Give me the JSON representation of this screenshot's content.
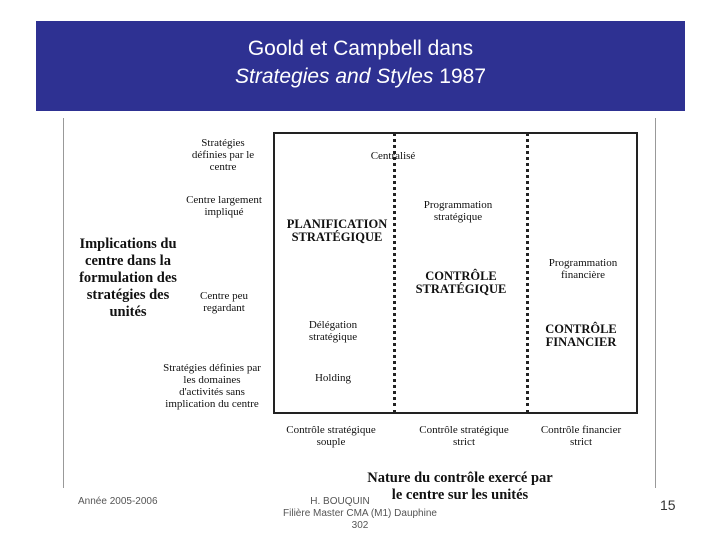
{
  "title": {
    "line1": "Goold et Campbell dans",
    "line2_italic": "Strategies and Styles",
    "line2_year": "1987"
  },
  "diagram": {
    "y_axis_title": [
      "Implications du",
      "centre dans la",
      "formulation des",
      "stratégies des",
      "unités"
    ],
    "y_levels": {
      "top": [
        "Stratégies",
        "définies par le",
        "centre"
      ],
      "upper": [
        "Centre largement",
        "impliqué"
      ],
      "lower": [
        "Centre peu",
        "regardant"
      ],
      "bottom": [
        "Stratégies définies par",
        "les domaines",
        "d'activités sans",
        "implication du centre"
      ]
    },
    "cells": {
      "centralise": "Centralisé",
      "prog_strategique": [
        "Programmation",
        "stratégique"
      ],
      "planification": [
        "PLANIFICATION",
        "STRATÉGIQUE"
      ],
      "prog_financiere": [
        "Programmation",
        "financière"
      ],
      "controle_strategique": [
        "CONTRÔLE",
        "STRATÉGIQUE"
      ],
      "delegation": [
        "Délégation",
        "stratégique"
      ],
      "controle_financier": [
        "CONTRÔLE",
        "FINANCIER"
      ],
      "holding": "Holding"
    },
    "x_levels": {
      "left": [
        "Contrôle stratégique",
        "souple"
      ],
      "middle": [
        "Contrôle stratégique",
        "strict"
      ],
      "right": [
        "Contrôle financier",
        "strict"
      ]
    },
    "x_axis_title": [
      "Nature du contrôle exercé par",
      "le centre sur les unités"
    ]
  },
  "footer": {
    "year": "Année 2005-2006",
    "author": "H. BOUQUIN",
    "program": "Filière Master CMA (M1) Dauphine",
    "code": "302",
    "page": "15"
  }
}
